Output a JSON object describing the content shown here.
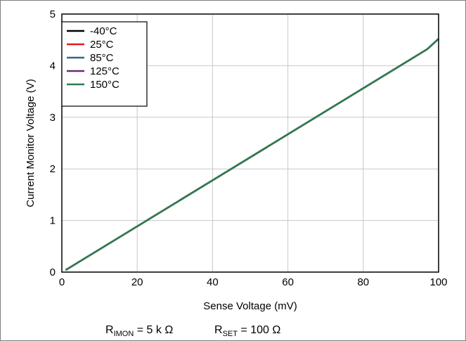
{
  "chart_data": {
    "type": "line",
    "xlabel": "Sense Voltage (mV)",
    "ylabel": "Current Monitor Voltage (V)",
    "xlim": [
      0,
      100
    ],
    "ylim": [
      0,
      5
    ],
    "xticks": [
      0,
      20,
      40,
      60,
      80,
      100
    ],
    "yticks": [
      0,
      1,
      2,
      3,
      4,
      5
    ],
    "xtick_labels": [
      "0",
      "20",
      "40",
      "60",
      "80",
      "100"
    ],
    "ytick_labels": [
      "0",
      "1",
      "2",
      "3",
      "4",
      "5"
    ],
    "grid": true,
    "legend_position": "top-left",
    "series": [
      {
        "name": "-40°C",
        "color": "#000000",
        "x": [
          1,
          97,
          100
        ],
        "y": [
          0.04,
          4.32,
          4.52
        ]
      },
      {
        "name": "25°C",
        "color": "#e31a1c",
        "x": [
          1,
          97,
          100
        ],
        "y": [
          0.04,
          4.32,
          4.52
        ]
      },
      {
        "name": "85°C",
        "color": "#2b6a8c",
        "x": [
          1,
          97,
          100
        ],
        "y": [
          0.04,
          4.32,
          4.52
        ]
      },
      {
        "name": "125°C",
        "color": "#6b2d6b",
        "x": [
          1,
          97,
          100
        ],
        "y": [
          0.04,
          4.32,
          4.52
        ]
      },
      {
        "name": "150°C",
        "color": "#2e7d4f",
        "x": [
          1,
          97,
          100
        ],
        "y": [
          0.04,
          4.32,
          4.52
        ]
      }
    ],
    "footnotes": [
      {
        "main": "R",
        "sub": "IMON",
        "rest": " = 5 k Ω"
      },
      {
        "main": "R",
        "sub": "SET",
        "rest": " = 100  Ω"
      }
    ]
  }
}
